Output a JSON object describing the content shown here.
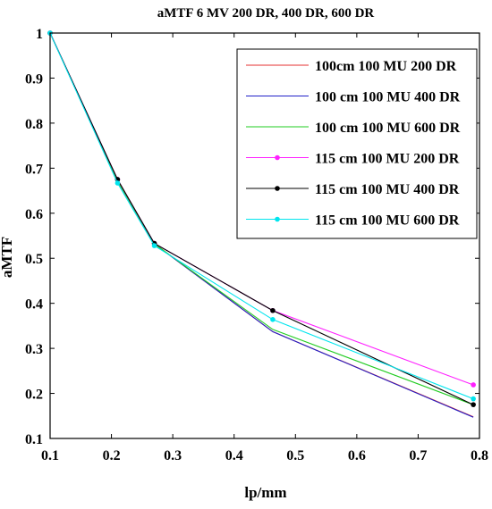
{
  "chart_data": {
    "type": "line",
    "title": "aMTF 6 MV 200 DR, 400 DR, 600 DR",
    "xlabel": "lp/mm",
    "ylabel": "aMTF",
    "xlim": [
      0.1,
      0.8
    ],
    "ylim": [
      0.1,
      1.0
    ],
    "xticks": [
      "0.1",
      "0.2",
      "0.3",
      "0.4",
      "0.5",
      "0.6",
      "0.7",
      "0.8"
    ],
    "yticks": [
      "0.1",
      "0.2",
      "0.3",
      "0.4",
      "0.5",
      "0.6",
      "0.7",
      "0.8",
      "0.9",
      "1"
    ],
    "grid": false,
    "legend_position": "top-right",
    "x": [
      0.1,
      0.21,
      0.27,
      0.463,
      0.79
    ],
    "series": [
      {
        "name": "100cm 100 MU 200 DR",
        "color": "#e53030",
        "marker": "none",
        "values": [
          1.0,
          0.672,
          0.532,
          0.337,
          0.148
        ]
      },
      {
        "name": "100 cm 100 MU 400 DR",
        "color": "#2020c8",
        "marker": "none",
        "values": [
          1.0,
          0.672,
          0.532,
          0.337,
          0.147
        ]
      },
      {
        "name": "100 cm 100 MU 600 DR",
        "color": "#22cc22",
        "marker": "none",
        "values": [
          1.0,
          0.672,
          0.532,
          0.342,
          0.175
        ]
      },
      {
        "name": "115 cm 100 MU 200 DR",
        "color": "#ff20ff",
        "marker": "dot",
        "values": [
          1.0,
          0.675,
          0.533,
          0.384,
          0.219
        ]
      },
      {
        "name": "115 cm 100 MU 400 DR",
        "color": "#000000",
        "marker": "dot",
        "values": [
          1.0,
          0.675,
          0.533,
          0.384,
          0.175
        ]
      },
      {
        "name": "115 cm 100 MU 600 DR",
        "color": "#00e5ee",
        "marker": "dot",
        "values": [
          1.0,
          0.667,
          0.528,
          0.364,
          0.188
        ]
      }
    ]
  }
}
